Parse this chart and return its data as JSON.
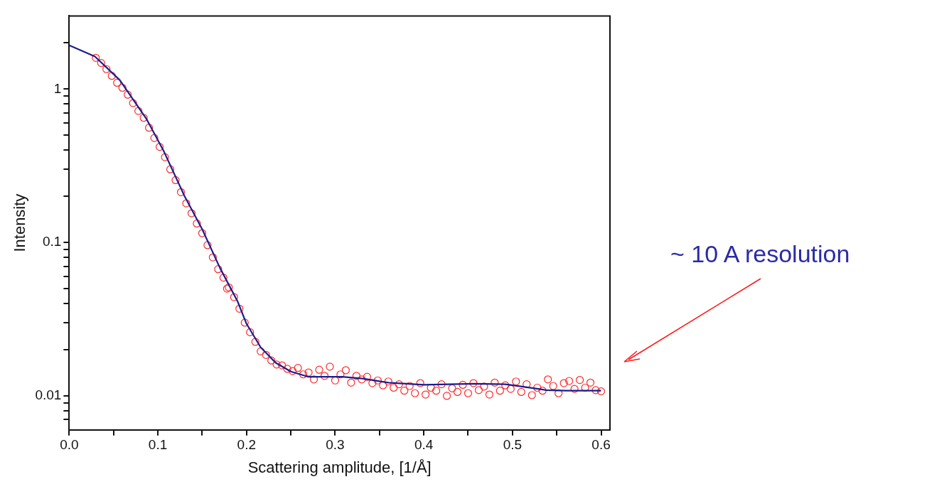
{
  "chart_data": {
    "type": "scatter",
    "xlabel": "Scattering amplitude, [1/Å]",
    "ylabel": "Intensity",
    "log": "y",
    "grid": false,
    "legend": false,
    "xlim": [
      0,
      0.61
    ],
    "ylim": [
      0.006,
      3
    ],
    "xticks": [
      {
        "value": 0,
        "label": "0.0"
      },
      {
        "value": 0.05,
        "label": null
      },
      0.1,
      {
        "value": 0.15,
        "label": null
      },
      0.2,
      {
        "value": 0.25,
        "label": null
      },
      0.3,
      {
        "value": 0.35,
        "label": null
      },
      0.4,
      {
        "value": 0.45,
        "label": null
      },
      0.5,
      {
        "value": 0.55,
        "label": null
      },
      0.6
    ],
    "yticks": [
      {
        "value": 0.007,
        "label": null
      },
      {
        "value": 0.008,
        "label": null
      },
      {
        "value": 0.009,
        "label": null
      },
      0.01,
      {
        "value": 0.02,
        "label": null
      },
      {
        "value": 0.03,
        "label": null
      },
      {
        "value": 0.04,
        "label": null
      },
      {
        "value": 0.05,
        "label": null
      },
      {
        "value": 0.06,
        "label": null
      },
      {
        "value": 0.07,
        "label": null
      },
      {
        "value": 0.08,
        "label": null
      },
      {
        "value": 0.09,
        "label": null
      },
      0.1,
      {
        "value": 0.2,
        "label": null
      },
      {
        "value": 0.3,
        "label": null
      },
      {
        "value": 0.4,
        "label": null
      },
      {
        "value": 0.5,
        "label": null
      },
      {
        "value": 0.6,
        "label": null
      },
      {
        "value": 0.7,
        "label": null
      },
      {
        "value": 0.8,
        "label": null
      },
      {
        "value": 0.9,
        "label": null
      },
      1,
      {
        "value": 2,
        "label": null
      }
    ],
    "annotations": [
      "~ 10 A resolution"
    ],
    "series": [
      {
        "color": "#ff2a2a",
        "marker": "circle",
        "x": [
          0.03,
          0.036,
          0.042,
          0.048,
          0.054,
          0.06,
          0.066,
          0.072,
          0.078,
          0.084,
          0.09,
          0.096,
          0.102,
          0.108,
          0.114,
          0.12,
          0.126,
          0.132,
          0.138,
          0.144,
          0.15,
          0.156,
          0.162,
          0.168,
          0.174,
          0.178,
          0.18,
          0.186,
          0.192,
          0.198,
          0.204,
          0.21,
          0.216,
          0.222,
          0.228,
          0.234,
          0.24,
          0.246,
          0.252,
          0.258,
          0.264,
          0.27,
          0.276,
          0.282,
          0.288,
          0.294,
          0.3,
          0.306,
          0.312,
          0.318,
          0.324,
          0.33,
          0.336,
          0.342,
          0.348,
          0.354,
          0.36,
          0.366,
          0.372,
          0.378,
          0.384,
          0.39,
          0.396,
          0.402,
          0.408,
          0.414,
          0.42,
          0.426,
          0.432,
          0.438,
          0.444,
          0.45,
          0.456,
          0.462,
          0.468,
          0.474,
          0.48,
          0.486,
          0.492,
          0.498,
          0.504,
          0.51,
          0.516,
          0.522,
          0.528,
          0.534,
          0.54,
          0.546,
          0.552,
          0.558,
          0.564,
          0.57,
          0.576,
          0.582,
          0.588,
          0.594,
          0.6
        ],
        "values": [
          1.6,
          1.48,
          1.35,
          1.22,
          1.1,
          1.02,
          0.92,
          0.81,
          0.72,
          0.65,
          0.56,
          0.48,
          0.42,
          0.36,
          0.3,
          0.255,
          0.213,
          0.18,
          0.155,
          0.133,
          0.115,
          0.096,
          0.08,
          0.067,
          0.059,
          0.05,
          0.051,
          0.044,
          0.037,
          0.03,
          0.026,
          0.0225,
          0.0195,
          0.0185,
          0.017,
          0.016,
          0.0158,
          0.015,
          0.0145,
          0.0152,
          0.0138,
          0.0142,
          0.0128,
          0.0148,
          0.0135,
          0.0155,
          0.0126,
          0.0138,
          0.0147,
          0.0122,
          0.0135,
          0.0128,
          0.0133,
          0.0121,
          0.0126,
          0.0117,
          0.0124,
          0.0113,
          0.0119,
          0.0108,
          0.0116,
          0.0104,
          0.0121,
          0.0102,
          0.0113,
          0.0108,
          0.0119,
          0.01,
          0.0112,
          0.0106,
          0.0118,
          0.0104,
          0.0121,
          0.0109,
          0.0115,
          0.0102,
          0.0122,
          0.0108,
          0.0117,
          0.0111,
          0.0124,
          0.0106,
          0.0119,
          0.0101,
          0.0113,
          0.0108,
          0.0128,
          0.0116,
          0.0104,
          0.0121,
          0.0125,
          0.0111,
          0.0127,
          0.0113,
          0.0122,
          0.0109,
          0.0107
        ]
      },
      {
        "type": "line",
        "color": "#1c1c8f",
        "marker": "none",
        "x": [
          0,
          0.029,
          0.057,
          0.087,
          0.107,
          0.13,
          0.15,
          0.17,
          0.19,
          0.2,
          0.216,
          0.233,
          0.25,
          0.27,
          0.308,
          0.331,
          0.36,
          0.4,
          0.458,
          0.492,
          0.515,
          0.538,
          0.56,
          0.6
        ],
        "values": [
          1.93,
          1.63,
          1.145,
          0.641,
          0.39,
          0.201,
          0.122,
          0.0683,
          0.0412,
          0.0295,
          0.0207,
          0.0164,
          0.0144,
          0.0133,
          0.0133,
          0.01295,
          0.0122,
          0.0118,
          0.012,
          0.0119,
          0.0114,
          0.0109,
          0.0108,
          0.0108
        ]
      }
    ]
  }
}
